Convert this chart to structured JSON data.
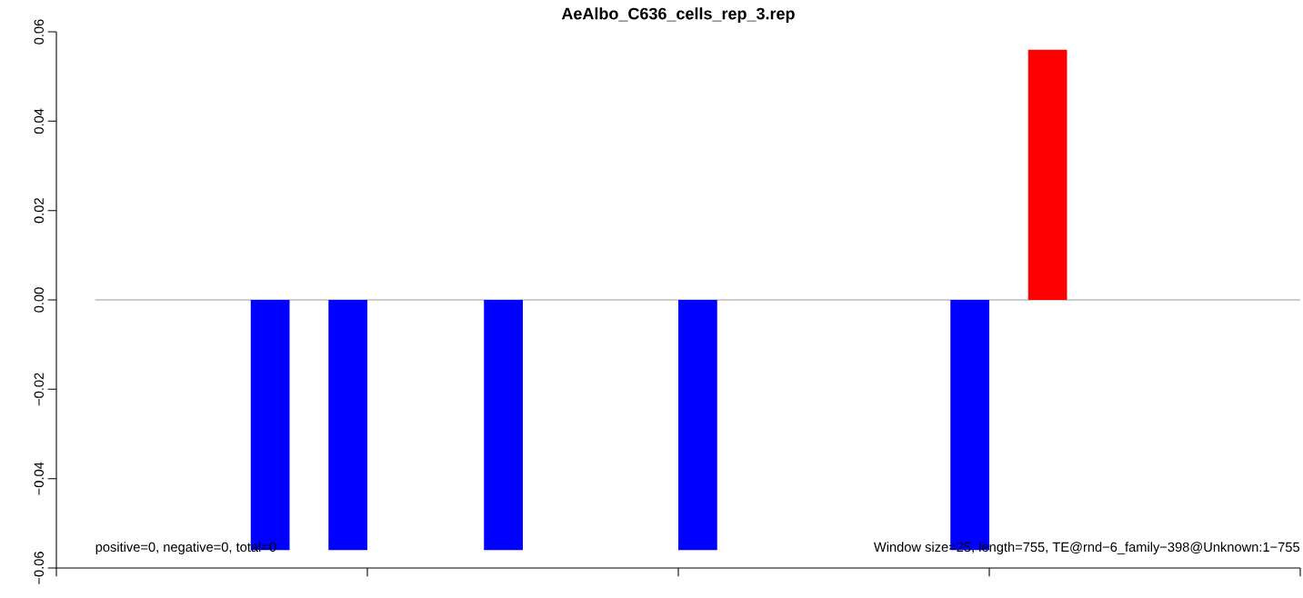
{
  "chart_data": {
    "type": "bar",
    "title": "AeAlbo_C636_cells_rep_3.rep",
    "categories": [
      null,
      null,
      null,
      null,
      null,
      null,
      null,
      null,
      null,
      null,
      null,
      null,
      null,
      null,
      null,
      null,
      null,
      null,
      null,
      null,
      null,
      null,
      null,
      null,
      null,
      null,
      null,
      null,
      null,
      null,
      null
    ],
    "values": [
      0,
      0,
      0,
      0,
      -0.056,
      0,
      -0.056,
      0,
      0,
      0,
      -0.056,
      0,
      0,
      0,
      0,
      -0.056,
      0,
      0,
      0,
      0,
      0,
      0,
      -0.056,
      0,
      0.056,
      0,
      0,
      0,
      0,
      0,
      0
    ],
    "colors": [
      "#0000ff",
      "#0000ff",
      "#0000ff",
      "#0000ff",
      "#0000ff",
      "#0000ff",
      "#0000ff",
      "#0000ff",
      "#0000ff",
      "#0000ff",
      "#0000ff",
      "#0000ff",
      "#0000ff",
      "#0000ff",
      "#0000ff",
      "#0000ff",
      "#0000ff",
      "#0000ff",
      "#0000ff",
      "#0000ff",
      "#0000ff",
      "#0000ff",
      "#0000ff",
      "#0000ff",
      "#ff0000",
      "#0000ff",
      "#0000ff",
      "#0000ff",
      "#0000ff",
      "#0000ff",
      "#0000ff"
    ],
    "ylim": [
      -0.06,
      0.06
    ],
    "yticks": [
      {
        "value": -0.06,
        "label": "−0.06"
      },
      {
        "value": -0.04,
        "label": "−0.04"
      },
      {
        "value": -0.02,
        "label": "−0.02"
      },
      {
        "value": 0,
        "label": "0.00"
      },
      {
        "value": 0.02,
        "label": "0.02"
      },
      {
        "value": 0.04,
        "label": "0.04"
      },
      {
        "value": 0.06,
        "label": "0.06"
      }
    ],
    "tick_labels": "y",
    "ref_lines": [
      {
        "axis": "y",
        "value": 0,
        "color": "#808080"
      }
    ],
    "annotations": [
      "positive=0, negative=0, total=0",
      "Window size=25, length=755, TE@rnd−6_family−398@Unknown:1−755"
    ],
    "grid": false
  }
}
